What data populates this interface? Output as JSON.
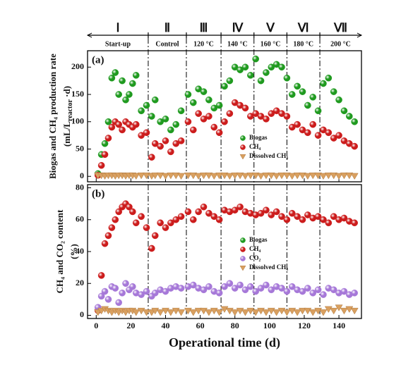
{
  "phases": [
    {
      "name": "Ⅰ",
      "label": "Start-up"
    },
    {
      "name": "Ⅱ",
      "label": "Control"
    },
    {
      "name": "Ⅲ",
      "label": "120 °C"
    },
    {
      "name": "Ⅳ",
      "label": "140 °C"
    },
    {
      "name": "Ⅴ",
      "label": "160 °C"
    },
    {
      "name": "Ⅵ",
      "label": "180 °C"
    },
    {
      "name": "Ⅶ",
      "label": "200 °C"
    }
  ],
  "phase_boundaries": [
    30,
    52,
    72,
    91,
    110,
    129
  ],
  "chart_data": [
    {
      "type": "scatter",
      "panel_label": "(a)",
      "y_label": "Biogas and CH₄ production rate",
      "y_label_2": {
        "pre": "(mL/L",
        "sub": "reactor",
        "post": " ·d)"
      },
      "xlim": [
        -5,
        153
      ],
      "xticks": [
        0,
        20,
        40,
        60,
        80,
        100,
        120,
        140
      ],
      "ylim": [
        -10,
        230
      ],
      "yticks": [
        0,
        50,
        100,
        150,
        200
      ],
      "legend": "lower right",
      "x": [
        1,
        3,
        5,
        7,
        9,
        11,
        13,
        15,
        17,
        19,
        21,
        23,
        26,
        29,
        32,
        34,
        37,
        40,
        43,
        46,
        49,
        53,
        56,
        59,
        62,
        65,
        68,
        71,
        74,
        77,
        80,
        83,
        86,
        89,
        92,
        95,
        98,
        101,
        104,
        107,
        110,
        113,
        116,
        119,
        122,
        125,
        128,
        131,
        134,
        137,
        140,
        143,
        146,
        149
      ],
      "series": [
        {
          "name": "Biogas",
          "color": "#1f9a1f",
          "marker": "sphere",
          "values": [
            5,
            40,
            60,
            100,
            180,
            190,
            150,
            175,
            140,
            150,
            170,
            185,
            120,
            130,
            110,
            140,
            100,
            105,
            85,
            95,
            120,
            150,
            135,
            160,
            155,
            140,
            125,
            130,
            165,
            175,
            200,
            195,
            200,
            185,
            215,
            175,
            190,
            200,
            205,
            200,
            180,
            150,
            165,
            155,
            130,
            145,
            120,
            170,
            180,
            155,
            140,
            120,
            110,
            100
          ]
        },
        {
          "name": "CH₄",
          "color": "#cc1c1c",
          "marker": "sphere",
          "values": [
            2,
            20,
            40,
            70,
            90,
            100,
            95,
            85,
            100,
            95,
            90,
            95,
            75,
            80,
            35,
            60,
            55,
            65,
            45,
            60,
            65,
            100,
            85,
            115,
            105,
            110,
            90,
            80,
            100,
            115,
            135,
            130,
            125,
            110,
            115,
            110,
            105,
            115,
            120,
            115,
            110,
            90,
            95,
            85,
            80,
            95,
            75,
            85,
            80,
            70,
            75,
            65,
            60,
            55
          ]
        },
        {
          "name": "Dissolved CH₄",
          "color": "#d9a060",
          "marker": "triangle",
          "values": [
            2,
            2,
            1,
            2,
            2,
            1,
            2,
            2,
            1,
            2,
            2,
            1,
            2,
            2,
            1,
            2,
            2,
            1,
            2,
            2,
            1,
            2,
            2,
            1,
            2,
            2,
            1,
            2,
            2,
            1,
            2,
            2,
            1,
            2,
            2,
            1,
            2,
            2,
            1,
            2,
            2,
            1,
            2,
            2,
            1,
            2,
            2,
            1,
            2,
            2,
            1,
            2,
            2,
            1
          ]
        }
      ]
    },
    {
      "type": "scatter",
      "panel_label": "(b)",
      "y_label": "CH₄ and CO₂ content",
      "y_label_3": "(%)",
      "x_label": "Operational time (d)",
      "xlim": [
        -5,
        153
      ],
      "xticks": [
        0,
        20,
        40,
        60,
        80,
        100,
        120,
        140
      ],
      "ylim": [
        -2,
        82
      ],
      "yticks": [
        0,
        20,
        40,
        60,
        80
      ],
      "legend": "center right",
      "x": [
        1,
        3,
        5,
        7,
        9,
        11,
        13,
        15,
        17,
        19,
        21,
        23,
        26,
        29,
        32,
        34,
        37,
        40,
        43,
        46,
        49,
        53,
        56,
        59,
        62,
        65,
        68,
        71,
        74,
        77,
        80,
        83,
        86,
        89,
        92,
        95,
        98,
        101,
        104,
        107,
        110,
        113,
        116,
        119,
        122,
        125,
        128,
        131,
        134,
        137,
        140,
        143,
        146,
        149
      ],
      "series": [
        {
          "name": "Biogas",
          "color": "#1f9a1f",
          "marker": "sphere",
          "x": [],
          "values": []
        },
        {
          "name": "CH₄",
          "color": "#cc1c1c",
          "marker": "sphere",
          "values": [
            3,
            25,
            45,
            50,
            55,
            60,
            65,
            68,
            70,
            68,
            65,
            58,
            62,
            55,
            42,
            50,
            58,
            55,
            58,
            60,
            62,
            65,
            60,
            65,
            68,
            64,
            62,
            60,
            66,
            65,
            66,
            68,
            65,
            64,
            63,
            64,
            66,
            63,
            65,
            62,
            60,
            64,
            62,
            60,
            63,
            61,
            62,
            60,
            58,
            62,
            60,
            61,
            59,
            58
          ]
        },
        {
          "name": "CO₂",
          "color": "#a678d8",
          "marker": "sphere",
          "values": [
            5,
            12,
            15,
            10,
            18,
            17,
            8,
            14,
            20,
            16,
            18,
            14,
            13,
            15,
            12,
            14,
            16,
            15,
            17,
            18,
            17,
            18,
            19,
            17,
            16,
            18,
            15,
            14,
            18,
            20,
            17,
            19,
            16,
            18,
            15,
            17,
            19,
            16,
            18,
            17,
            15,
            18,
            16,
            15,
            17,
            14,
            16,
            13,
            17,
            16,
            14,
            15,
            13,
            14
          ]
        },
        {
          "name": "Dissolved CH₄",
          "color": "#d9a060",
          "marker": "triangle",
          "values": [
            2,
            3,
            4,
            3,
            2,
            3,
            2,
            3,
            2,
            3,
            3,
            2,
            3,
            2,
            2,
            3,
            2,
            3,
            2,
            3,
            2,
            3,
            2,
            3,
            3,
            2,
            3,
            2,
            4,
            3,
            2,
            3,
            2,
            3,
            2,
            3,
            2,
            3,
            2,
            3,
            2,
            3,
            2,
            3,
            3,
            2,
            3,
            2,
            4,
            3,
            5,
            3,
            4,
            3
          ]
        }
      ]
    }
  ]
}
